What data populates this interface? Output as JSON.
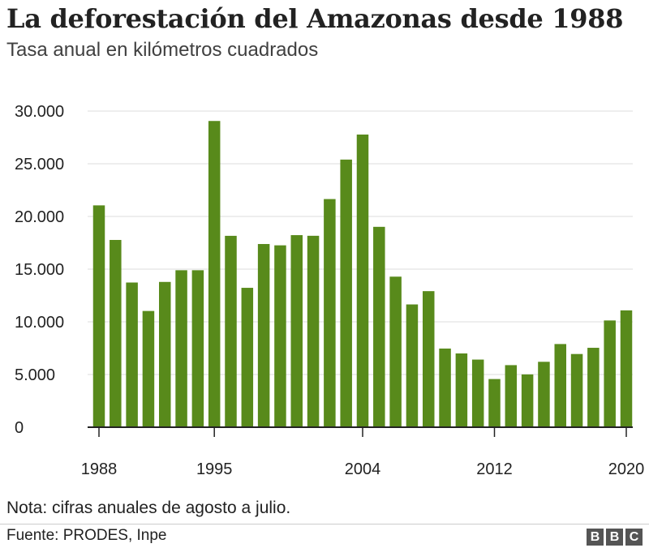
{
  "title": "La deforestación del Amazonas desde 1988",
  "subtitle": "Tasa anual en kilómetros cuadrados",
  "note": "Nota: cifras anuales de agosto a julio.",
  "source": "Fuente: PRODES, Inpe",
  "logo": {
    "letters": [
      "B",
      "B",
      "C"
    ]
  },
  "colors": {
    "bar": "#588a1b",
    "grid": "#dddddd",
    "axis": "#222222"
  },
  "chart_data": {
    "type": "bar",
    "x": [
      1988,
      1989,
      1990,
      1991,
      1992,
      1993,
      1994,
      1995,
      1996,
      1997,
      1998,
      1999,
      2000,
      2001,
      2002,
      2003,
      2004,
      2005,
      2006,
      2007,
      2008,
      2009,
      2010,
      2011,
      2012,
      2013,
      2014,
      2015,
      2016,
      2017,
      2018,
      2019,
      2020
    ],
    "values": [
      21050,
      17770,
      13730,
      11030,
      13786,
      14896,
      14896,
      29059,
      18161,
      13227,
      17383,
      17259,
      18226,
      18165,
      21650,
      25396,
      27772,
      19014,
      14286,
      11651,
      12911,
      7464,
      7000,
      6418,
      4571,
      5891,
      5012,
      6207,
      7893,
      6947,
      7536,
      10129,
      11088
    ],
    "ylim": [
      0,
      30000
    ],
    "yticks": [
      0,
      5000,
      10000,
      15000,
      20000,
      25000,
      30000
    ],
    "ytick_labels": [
      "0",
      "5.000",
      "10.000",
      "15.000",
      "20.000",
      "25.000",
      "30.000"
    ],
    "xticks": [
      1988,
      1995,
      2004,
      2012,
      2020
    ],
    "xtick_labels": [
      "1988",
      "1995",
      "2004",
      "2012",
      "2020"
    ],
    "grid": true,
    "title": "La deforestación del Amazonas desde 1988",
    "ylabel": "",
    "xlabel": ""
  }
}
